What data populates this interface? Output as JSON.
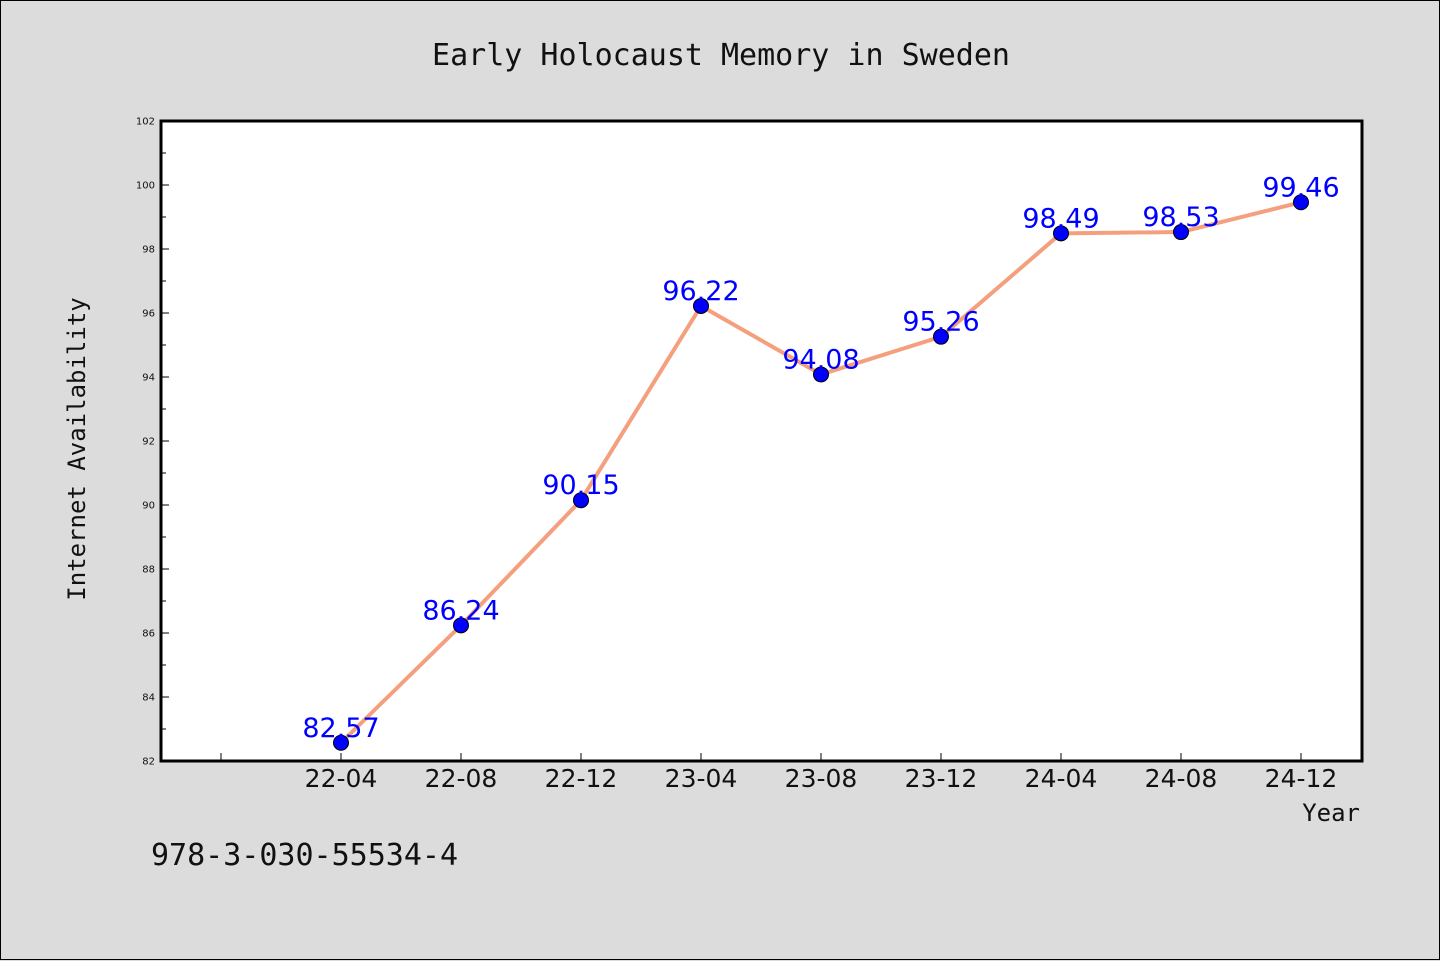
{
  "chart_data": {
    "type": "line",
    "title": "Early Holocaust Memory in Sweden",
    "xlabel": "Year",
    "ylabel": "Internet Availability",
    "categories": [
      "22-04",
      "22-08",
      "22-12",
      "23-04",
      "23-08",
      "23-12",
      "24-04",
      "24-08",
      "24-12"
    ],
    "series": [
      {
        "values": [
          82.57,
          86.24,
          90.15,
          96.22,
          94.08,
          95.26,
          98.49,
          98.53,
          99.46
        ],
        "labels": [
          "82.57",
          "86.24",
          "90.15",
          "96.22",
          "94.08",
          "95.26",
          "98.49",
          "98.53",
          "99.46"
        ],
        "line_color": "#f4a07e",
        "marker_color": "#0000ff"
      }
    ],
    "ylim": [
      82,
      102
    ],
    "yticks": [
      "82",
      "84",
      "86",
      "88",
      "90",
      "92",
      "94",
      "96",
      "98",
      "100",
      "102"
    ],
    "grid": false,
    "legend": "none"
  },
  "footnote": "978-3-030-55534-4"
}
